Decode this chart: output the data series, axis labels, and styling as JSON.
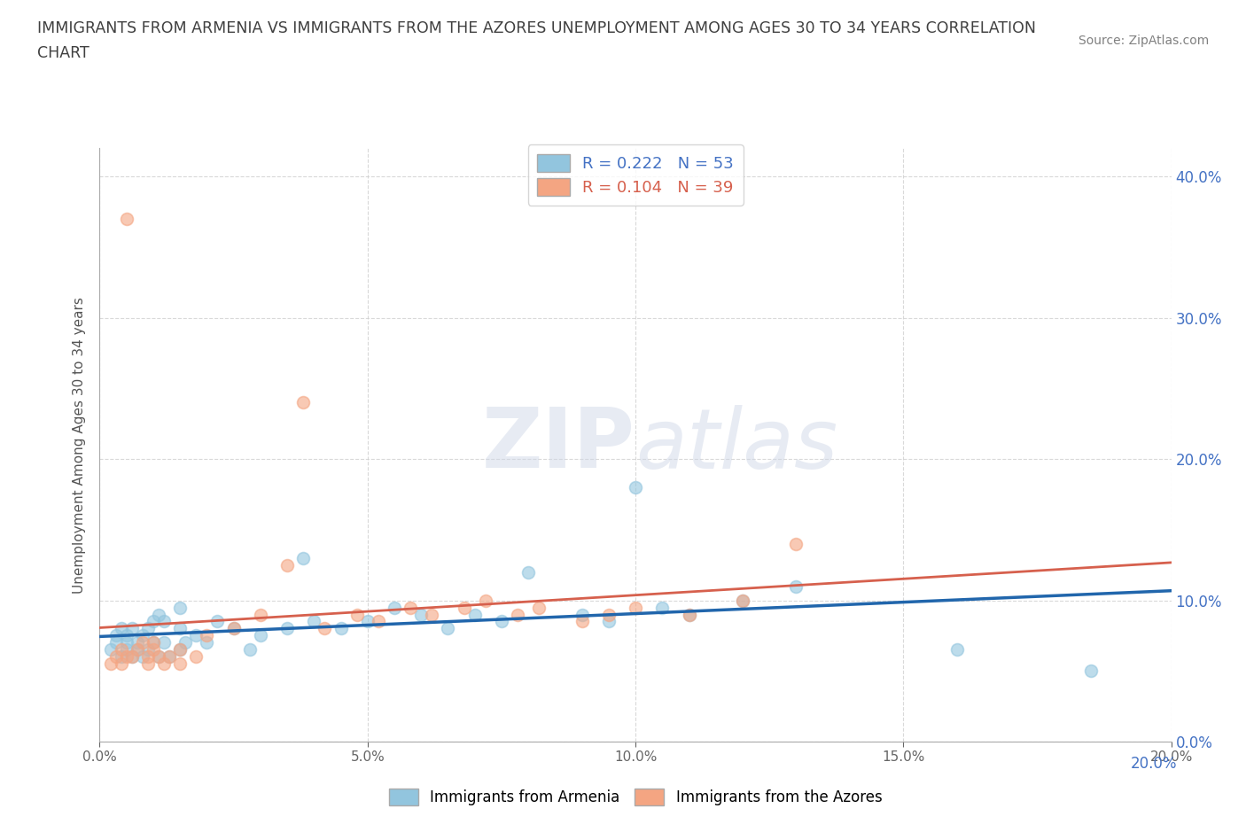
{
  "title_line1": "IMMIGRANTS FROM ARMENIA VS IMMIGRANTS FROM THE AZORES UNEMPLOYMENT AMONG AGES 30 TO 34 YEARS CORRELATION",
  "title_line2": "CHART",
  "source": "Source: ZipAtlas.com",
  "ylabel": "Unemployment Among Ages 30 to 34 years",
  "legend_label1": "Immigrants from Armenia",
  "legend_label2": "Immigrants from the Azores",
  "R1": 0.222,
  "N1": 53,
  "R2": 0.104,
  "N2": 39,
  "color1": "#92c5de",
  "color2": "#f4a582",
  "trendline1_color": "#2166ac",
  "trendline2_color": "#d6604d",
  "xlim": [
    0.0,
    0.2
  ],
  "ylim": [
    0.0,
    0.42
  ],
  "xticks": [
    0.0,
    0.05,
    0.1,
    0.15,
    0.2
  ],
  "yticks": [
    0.0,
    0.1,
    0.2,
    0.3,
    0.4
  ],
  "xtick_labels_bottom": [
    "0.0%",
    "",
    "",
    "",
    "20.0%"
  ],
  "xtick_labels_mid": [
    "",
    "5.0%",
    "10.0%",
    "15.0%",
    ""
  ],
  "ytick_labels_right": [
    "0.0%",
    "10.0%",
    "20.0%",
    "30.0%",
    "40.0%"
  ],
  "watermark": "ZIPatlas",
  "armenia_x": [
    0.002,
    0.003,
    0.003,
    0.004,
    0.004,
    0.005,
    0.005,
    0.005,
    0.006,
    0.006,
    0.007,
    0.007,
    0.008,
    0.008,
    0.009,
    0.009,
    0.01,
    0.01,
    0.011,
    0.011,
    0.012,
    0.012,
    0.013,
    0.015,
    0.015,
    0.015,
    0.016,
    0.018,
    0.02,
    0.022,
    0.025,
    0.028,
    0.03,
    0.035,
    0.038,
    0.04,
    0.045,
    0.05,
    0.055,
    0.06,
    0.065,
    0.07,
    0.075,
    0.08,
    0.09,
    0.095,
    0.1,
    0.105,
    0.11,
    0.12,
    0.13,
    0.16,
    0.185
  ],
  "armenia_y": [
    0.065,
    0.07,
    0.075,
    0.06,
    0.08,
    0.065,
    0.075,
    0.07,
    0.06,
    0.08,
    0.07,
    0.065,
    0.06,
    0.075,
    0.065,
    0.08,
    0.07,
    0.085,
    0.06,
    0.09,
    0.07,
    0.085,
    0.06,
    0.065,
    0.08,
    0.095,
    0.07,
    0.075,
    0.07,
    0.085,
    0.08,
    0.065,
    0.075,
    0.08,
    0.13,
    0.085,
    0.08,
    0.085,
    0.095,
    0.09,
    0.08,
    0.09,
    0.085,
    0.12,
    0.09,
    0.085,
    0.18,
    0.095,
    0.09,
    0.1,
    0.11,
    0.065,
    0.05
  ],
  "azores_x": [
    0.002,
    0.003,
    0.004,
    0.004,
    0.005,
    0.005,
    0.006,
    0.007,
    0.008,
    0.009,
    0.009,
    0.01,
    0.01,
    0.011,
    0.012,
    0.013,
    0.015,
    0.015,
    0.018,
    0.02,
    0.025,
    0.03,
    0.035,
    0.038,
    0.042,
    0.048,
    0.052,
    0.058,
    0.062,
    0.068,
    0.072,
    0.078,
    0.082,
    0.09,
    0.095,
    0.1,
    0.11,
    0.12,
    0.13
  ],
  "azores_y": [
    0.055,
    0.06,
    0.055,
    0.065,
    0.37,
    0.06,
    0.06,
    0.065,
    0.07,
    0.055,
    0.06,
    0.065,
    0.07,
    0.06,
    0.055,
    0.06,
    0.055,
    0.065,
    0.06,
    0.075,
    0.08,
    0.09,
    0.125,
    0.24,
    0.08,
    0.09,
    0.085,
    0.095,
    0.09,
    0.095,
    0.1,
    0.09,
    0.095,
    0.085,
    0.09,
    0.095,
    0.09,
    0.1,
    0.14
  ],
  "background_color": "#ffffff",
  "grid_color": "#d0d0d0",
  "right_axis_color": "#4472c4",
  "title_color": "#404040",
  "source_color": "#808080",
  "scatter_alpha": 0.6,
  "scatter_size": 100,
  "scatter_linewidth": 1.2
}
